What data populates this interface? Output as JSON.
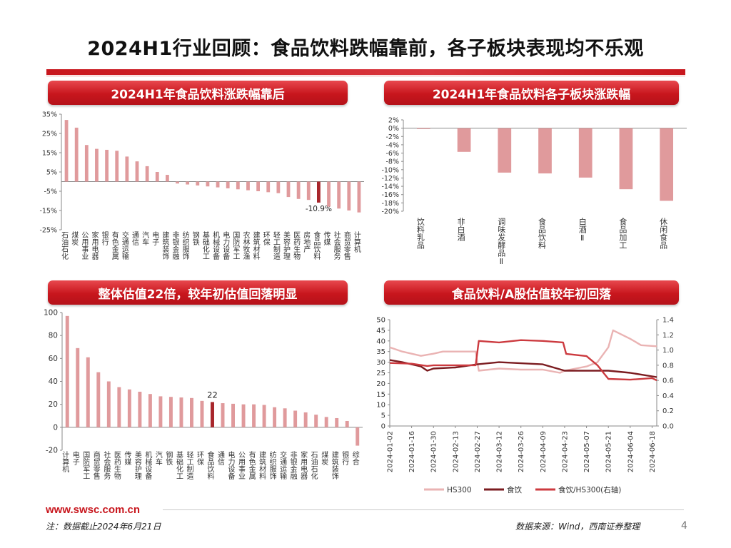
{
  "page": {
    "title": "2024H1行业回顾：食品饮料跌幅靠前，各子板块表现均不乐观",
    "website": "www.swsc.com.cn",
    "note": "注：数据截止2024年6月21日",
    "source": "数据来源：Wind，西南证券整理",
    "page_number": "4"
  },
  "panels": {
    "p1": "2024H1年食品饮料涨跌幅靠后",
    "p2": "2024H1年食品饮料各子板块涨跌幅",
    "p3": "整体估值22倍，较年初估值回落明显",
    "p4": "食品饮料/A股估值较年初回落"
  },
  "colors": {
    "bar": "#e09a9c",
    "highlight": "#a8262b",
    "hs300": "#eab3b3",
    "food": "#7b1c20",
    "ratio": "#cc3a3f"
  },
  "chart_data": [
    {
      "type": "bar",
      "id": "industry_returns_2024h1",
      "categories": [
        "石油石化",
        "煤炭",
        "公用事业",
        "家用电器",
        "银行",
        "有色金属",
        "交通运输",
        "通信",
        "汽车",
        "电子",
        "建筑装饰",
        "非银金融",
        "纺织服饰",
        "钢铁",
        "基础化工",
        "机械设备",
        "电力设备",
        "国防军工",
        "农林牧渔",
        "建筑材料",
        "环保",
        "轻工制造",
        "美容护理",
        "医药生物",
        "房地产",
        "食品饮料",
        "传媒",
        "社会服务",
        "商贸零售",
        "计算机"
      ],
      "values": [
        32,
        28,
        19,
        17,
        16.5,
        16,
        13,
        10.5,
        8,
        5,
        3.5,
        -1,
        -1.5,
        -2,
        -2.5,
        -3,
        -3.5,
        -4,
        -4.5,
        -5,
        -5.5,
        -6,
        -8,
        -9,
        -9.5,
        -10.9,
        -13,
        -14,
        -15,
        -16
      ],
      "highlight_category": "食品饮料",
      "data_labels": {
        "食品饮料": "-10.9%"
      },
      "y_ticks": [
        "35%",
        "25%",
        "15%",
        "5%",
        "-5%",
        "-15%",
        "-25%"
      ],
      "ylim": [
        -25,
        35
      ]
    },
    {
      "type": "bar",
      "id": "sub_sector_returns_2024h1",
      "categories": [
        "饮料乳品",
        "非白酒",
        "调味发酵品Ⅱ",
        "食品饮料",
        "白酒Ⅱ",
        "食品加工",
        "休闲食品"
      ],
      "values": [
        -0.2,
        -5.7,
        -10.7,
        -10.9,
        -11.9,
        -14.7,
        -17.5
      ],
      "y_ticks": [
        "2%",
        "0%",
        "-2%",
        "-4%",
        "-6%",
        "-8%",
        "-10%",
        "-12%",
        "-14%",
        "-16%",
        "-18%",
        "-20%"
      ],
      "ylim": [
        -20,
        2
      ]
    },
    {
      "type": "bar",
      "id": "industry_pe",
      "categories": [
        "计算机",
        "电子",
        "国防军工",
        "商贸零售",
        "社会服务",
        "医药生物",
        "传媒",
        "美容护理",
        "机械设备",
        "汽车",
        "钢铁",
        "基础化工",
        "轻工制造",
        "环保",
        "食品饮料",
        "通信",
        "电力设备",
        "公用事业",
        "有色金属",
        "建筑材料",
        "纺织服饰",
        "交通运输",
        "非银金融",
        "家用电器",
        "石油石化",
        "煤炭",
        "建筑装饰",
        "银行",
        "综合"
      ],
      "values": [
        97,
        69,
        61,
        48,
        40,
        35,
        33,
        31,
        29,
        27,
        26.5,
        26,
        25.5,
        23,
        22,
        21,
        20.5,
        20,
        20,
        19.5,
        17.5,
        16.5,
        14.5,
        13,
        11,
        9,
        8,
        5.5,
        -16
      ],
      "highlight_category": "食品饮料",
      "data_labels": {
        "食品饮料": "22"
      },
      "y_ticks": [
        "100",
        "80",
        "60",
        "40",
        "20",
        "0",
        "-20"
      ],
      "ylim": [
        -20,
        100
      ]
    },
    {
      "type": "line",
      "id": "pe_trend",
      "x_ticks": [
        "2024-01-02",
        "2024-01-16",
        "2024-01-30",
        "2024-02-13",
        "2024-02-27",
        "2024-03-12",
        "2024-03-26",
        "2024-04-09",
        "2024-04-23",
        "2024-05-07",
        "2024-05-21",
        "2024-06-04",
        "2024-06-18"
      ],
      "x_range": [
        "2024-01-02",
        "2024-06-21"
      ],
      "y_left_ticks": [
        "50",
        "45",
        "40",
        "35",
        "30",
        "25",
        "20",
        "15",
        "10",
        "5",
        "0"
      ],
      "y_right_ticks": [
        "1.4",
        "1.2",
        "1.0",
        "0.8",
        "0.6",
        "0.4",
        "0.2",
        "0.0"
      ],
      "ylim_left": [
        0,
        50
      ],
      "ylim_right": [
        0,
        1.4
      ],
      "series": [
        {
          "name": "HS300",
          "axis": "left",
          "points": [
            [
              "2024-01-02",
              37
            ],
            [
              "2024-01-10",
              35
            ],
            [
              "2024-01-22",
              33
            ],
            [
              "2024-01-30",
              34
            ],
            [
              "2024-02-05",
              35
            ],
            [
              "2024-02-26",
              35
            ],
            [
              "2024-02-28",
              26
            ],
            [
              "2024-03-12",
              27
            ],
            [
              "2024-03-26",
              26.5
            ],
            [
              "2024-04-09",
              26.5
            ],
            [
              "2024-04-20",
              25
            ],
            [
              "2024-04-23",
              26
            ],
            [
              "2024-05-07",
              28
            ],
            [
              "2024-05-14",
              30
            ],
            [
              "2024-05-21",
              37
            ],
            [
              "2024-05-24",
              45
            ],
            [
              "2024-06-04",
              41
            ],
            [
              "2024-06-11",
              38
            ],
            [
              "2024-06-21",
              37.5
            ]
          ]
        },
        {
          "name": "食饮",
          "axis": "left",
          "points": [
            [
              "2024-01-02",
              31
            ],
            [
              "2024-01-10",
              30
            ],
            [
              "2024-01-16",
              29
            ],
            [
              "2024-01-22",
              28
            ],
            [
              "2024-01-26",
              26
            ],
            [
              "2024-01-30",
              27
            ],
            [
              "2024-02-13",
              27.5
            ],
            [
              "2024-02-27",
              29
            ],
            [
              "2024-03-12",
              30
            ],
            [
              "2024-03-26",
              29.5
            ],
            [
              "2024-04-09",
              29
            ],
            [
              "2024-04-23",
              26
            ],
            [
              "2024-05-07",
              26
            ],
            [
              "2024-05-21",
              26
            ],
            [
              "2024-06-04",
              25
            ],
            [
              "2024-06-21",
              23
            ]
          ]
        },
        {
          "name": "食饮/HS300(右轴)",
          "axis": "right",
          "points": [
            [
              "2024-01-02",
              0.83
            ],
            [
              "2024-01-16",
              0.82
            ],
            [
              "2024-01-26",
              0.79
            ],
            [
              "2024-01-30",
              0.8
            ],
            [
              "2024-02-13",
              0.8
            ],
            [
              "2024-02-26",
              0.8
            ],
            [
              "2024-02-28",
              1.12
            ],
            [
              "2024-03-12",
              1.1
            ],
            [
              "2024-03-26",
              1.13
            ],
            [
              "2024-04-09",
              1.12
            ],
            [
              "2024-04-22",
              1.1
            ],
            [
              "2024-04-24",
              0.95
            ],
            [
              "2024-05-07",
              0.92
            ],
            [
              "2024-05-14",
              0.8
            ],
            [
              "2024-05-21",
              0.62
            ],
            [
              "2024-06-04",
              0.61
            ],
            [
              "2024-06-18",
              0.63
            ],
            [
              "2024-06-21",
              0.6
            ]
          ]
        }
      ]
    }
  ]
}
